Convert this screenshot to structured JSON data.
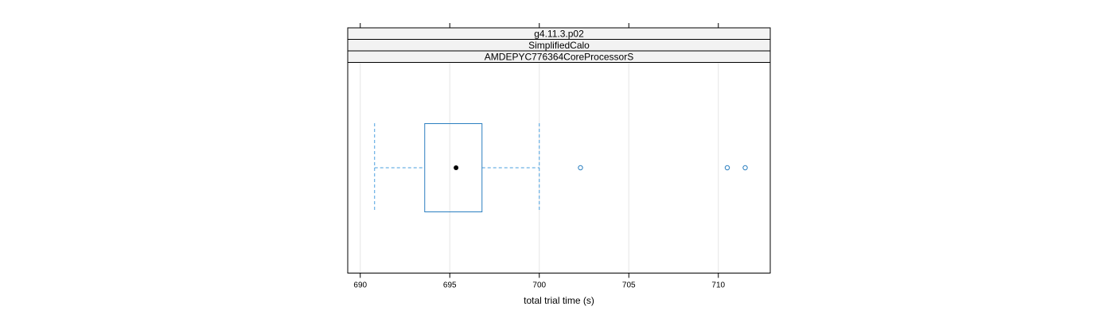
{
  "chart_data": {
    "type": "boxplot",
    "orientation": "horizontal",
    "strips": [
      "g4.11.3.p02",
      "SimplifiedCalo",
      "AMDEPYC776364CoreProcessorS"
    ],
    "xlabel": "total trial time (s)",
    "xlim": [
      689.3,
      712.9
    ],
    "xticks": [
      690,
      695,
      700,
      705,
      710
    ],
    "xtick_labels": [
      "690",
      "695",
      "700",
      "705",
      "710"
    ],
    "grid": true,
    "box": {
      "whisker_low": 690.8,
      "q1": 693.6,
      "median": 695.35,
      "q3": 696.8,
      "whisker_high": 700.0,
      "outliers": [
        702.3,
        710.5,
        711.5
      ]
    },
    "colors": {
      "box": "#2b7fc0",
      "whisker": "#4a9fdf",
      "median_dot": "#000000",
      "strip_fill": "#f2f2f2",
      "grid": "#e6e6e6",
      "frame": "#000000"
    }
  }
}
